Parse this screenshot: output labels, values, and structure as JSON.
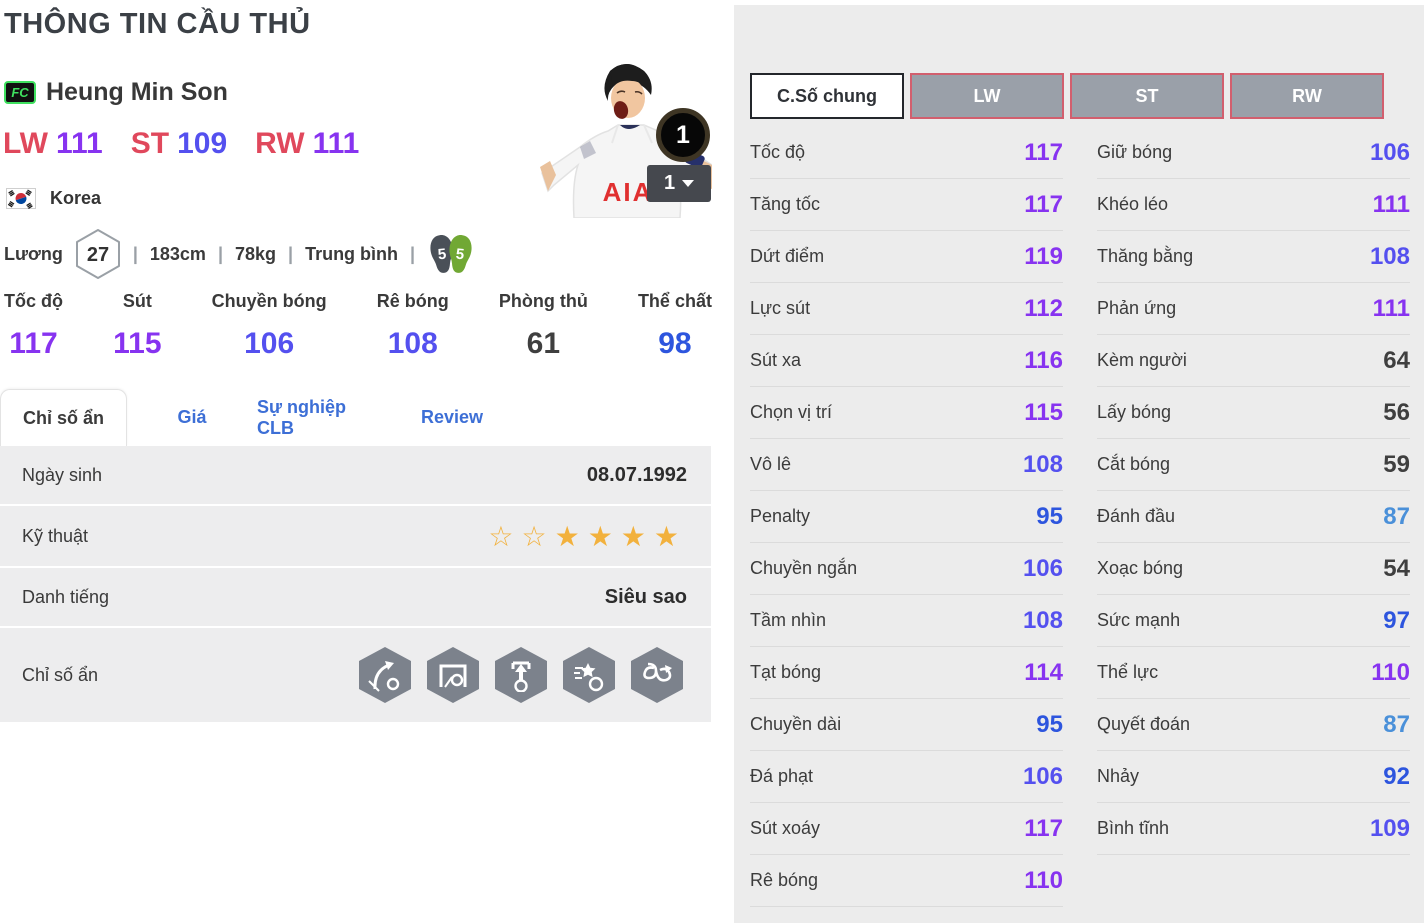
{
  "page": {
    "title": "THÔNG TIN CẦU THỦ"
  },
  "player": {
    "card_badge": "FC",
    "name": "Heung Min Son",
    "positions": [
      {
        "pos": "LW",
        "rating": "111",
        "tier": "purple"
      },
      {
        "pos": "ST",
        "rating": "109",
        "tier": "violet"
      },
      {
        "pos": "RW",
        "rating": "111",
        "tier": "purple"
      }
    ],
    "nation": "Korea",
    "jersey_text": "AIA",
    "level_badge": "1",
    "level_select": "1",
    "foot_left": "5",
    "foot_right": "5"
  },
  "bio": {
    "salary_label": "Lương",
    "salary": "27",
    "separator": "|",
    "height": "183cm",
    "weight": "78kg",
    "body_type": "Trung bình"
  },
  "main_stats": [
    {
      "label": "Tốc độ",
      "value": "117",
      "tier": "purple"
    },
    {
      "label": "Sút",
      "value": "115",
      "tier": "purple"
    },
    {
      "label": "Chuyền bóng",
      "value": "106",
      "tier": "violet"
    },
    {
      "label": "Rê bóng",
      "value": "108",
      "tier": "violet"
    },
    {
      "label": "Phòng thủ",
      "value": "61",
      "tier": "dark"
    },
    {
      "label": "Thể chất",
      "value": "98",
      "tier": "blue"
    }
  ],
  "tabs": [
    {
      "id": "chi-so-an",
      "label": "Chỉ số ẩn",
      "active": true
    },
    {
      "id": "gia",
      "label": "Giá",
      "active": false
    },
    {
      "id": "su-nghiep-clb",
      "label": "Sự nghiệp CLB",
      "active": false
    },
    {
      "id": "review",
      "label": "Review",
      "active": false
    }
  ],
  "info_rows": [
    {
      "label": "Ngày sinh",
      "type": "text",
      "value": "08.07.1992"
    },
    {
      "label": "Kỹ thuật",
      "type": "stars",
      "stars_empty": 2,
      "stars_filled": 4
    },
    {
      "label": "Danh tiếng",
      "type": "text",
      "value": "Siêu sao"
    },
    {
      "label": "Chỉ số ẩn",
      "type": "icons",
      "icons": [
        "curved-shot-icon",
        "goal-poacher-icon",
        "power-shot-icon",
        "boot-star-icon",
        "skill-dribble-icon"
      ]
    }
  ],
  "stat_tabs": [
    {
      "id": "c-so-chung",
      "label": "C.Số chung",
      "active": true
    },
    {
      "id": "lw",
      "label": "LW",
      "active": false
    },
    {
      "id": "st",
      "label": "ST",
      "active": false
    },
    {
      "id": "rw",
      "label": "RW",
      "active": false
    }
  ],
  "detail_stats": {
    "left": [
      {
        "label": "Tốc độ",
        "value": "117",
        "tier": "purple"
      },
      {
        "label": "Tăng tốc",
        "value": "117",
        "tier": "purple"
      },
      {
        "label": "Dứt điểm",
        "value": "119",
        "tier": "purple"
      },
      {
        "label": "Lực sút",
        "value": "112",
        "tier": "purple"
      },
      {
        "label": "Sút xa",
        "value": "116",
        "tier": "purple"
      },
      {
        "label": "Chọn vị trí",
        "value": "115",
        "tier": "purple"
      },
      {
        "label": "Vô lê",
        "value": "108",
        "tier": "violet"
      },
      {
        "label": "Penalty",
        "value": "95",
        "tier": "blue"
      },
      {
        "label": "Chuyền ngắn",
        "value": "106",
        "tier": "violet"
      },
      {
        "label": "Tầm nhìn",
        "value": "108",
        "tier": "violet"
      },
      {
        "label": "Tạt bóng",
        "value": "114",
        "tier": "purple"
      },
      {
        "label": "Chuyền dài",
        "value": "95",
        "tier": "blue"
      },
      {
        "label": "Đá phạt",
        "value": "106",
        "tier": "violet"
      },
      {
        "label": "Sút xoáy",
        "value": "117",
        "tier": "purple"
      },
      {
        "label": "Rê bóng",
        "value": "110",
        "tier": "purple"
      }
    ],
    "right": [
      {
        "label": "Giữ bóng",
        "value": "106",
        "tier": "violet"
      },
      {
        "label": "Khéo léo",
        "value": "111",
        "tier": "purple"
      },
      {
        "label": "Thăng bằng",
        "value": "108",
        "tier": "violet"
      },
      {
        "label": "Phản ứng",
        "value": "111",
        "tier": "purple"
      },
      {
        "label": "Kèm người",
        "value": "64",
        "tier": "dark"
      },
      {
        "label": "Lấy bóng",
        "value": "56",
        "tier": "dark"
      },
      {
        "label": "Cắt bóng",
        "value": "59",
        "tier": "dark"
      },
      {
        "label": "Đánh đầu",
        "value": "87",
        "tier": "lightblue"
      },
      {
        "label": "Xoạc bóng",
        "value": "54",
        "tier": "dark"
      },
      {
        "label": "Sức mạnh",
        "value": "97",
        "tier": "blue"
      },
      {
        "label": "Thể lực",
        "value": "110",
        "tier": "purple"
      },
      {
        "label": "Quyết đoán",
        "value": "87",
        "tier": "lightblue"
      },
      {
        "label": "Nhảy",
        "value": "92",
        "tier": "blue"
      },
      {
        "label": "Bình tĩnh",
        "value": "109",
        "tier": "violet"
      }
    ]
  },
  "colors": {
    "purple": "#8733f0",
    "violet": "#5450ef",
    "blue": "#2d55de",
    "lightblue": "#4a90d9",
    "dark": "#3f3f3f",
    "posred": "#e0485c",
    "tabblue": "#3d6fd6",
    "gold": "#f2b13d",
    "panelbg": "#ececec",
    "rowbg": "#ededee",
    "icongray": "#7c828c",
    "footgreen": "#71a834",
    "footdark": "#4a5058",
    "btngray": "#9aa0a9",
    "btnborder": "#d25f6e"
  }
}
